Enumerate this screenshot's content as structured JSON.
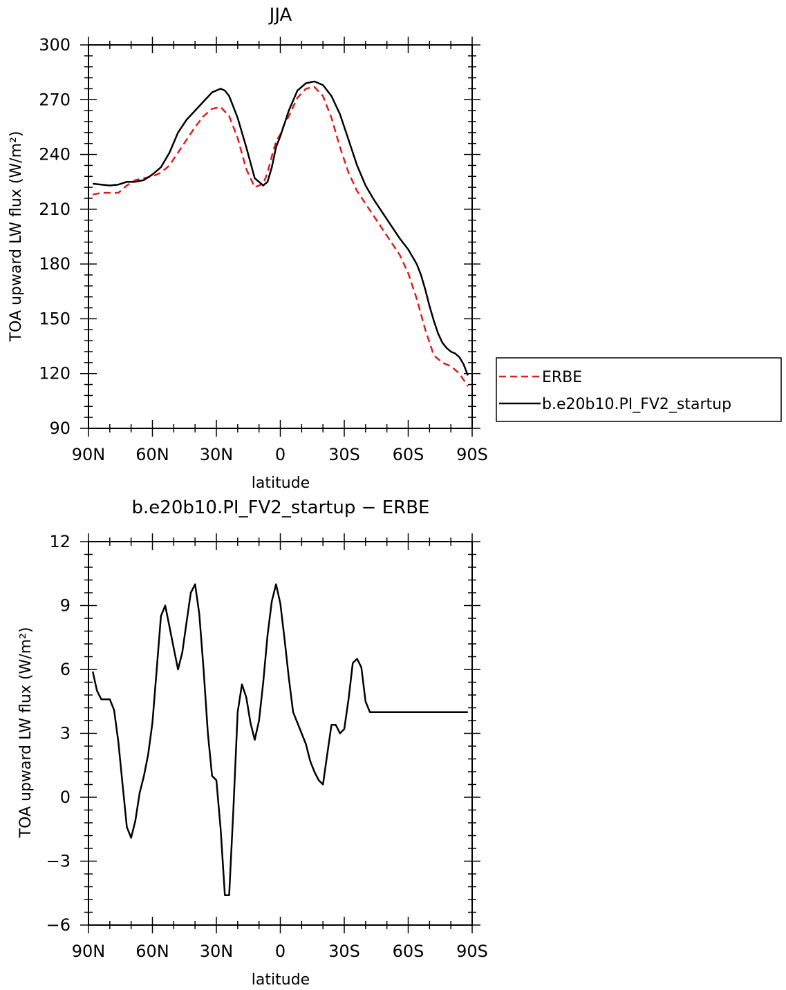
{
  "chart_data": [
    {
      "type": "line",
      "title": "JJA",
      "xlabel": "latitude",
      "ylabel": "TOA upward LW flux (W/m²)",
      "ylim": [
        90,
        300
      ],
      "xlim": [
        -90,
        90
      ],
      "yticks": [
        90,
        120,
        150,
        180,
        210,
        240,
        270,
        300
      ],
      "xticks": [
        {
          "value": -90,
          "label": "90N"
        },
        {
          "value": -60,
          "label": "60N"
        },
        {
          "value": -30,
          "label": "30N"
        },
        {
          "value": 0,
          "label": "0"
        },
        {
          "value": 30,
          "label": "30S"
        },
        {
          "value": 60,
          "label": "60S"
        },
        {
          "value": 90,
          "label": "90S"
        }
      ],
      "legend": {
        "placement": "right",
        "entries": [
          "ERBE",
          "b.e20b10.PI_FV2_startup"
        ]
      },
      "series": [
        {
          "name": "ERBE",
          "color": "#e41a1c",
          "dash": "dashed",
          "x": [
            -88,
            -84,
            -80,
            -76,
            -72,
            -68,
            -64,
            -60,
            -56,
            -52,
            -48,
            -44,
            -40,
            -36,
            -32,
            -28,
            -24,
            -20,
            -16,
            -12,
            -8,
            -6,
            -4,
            -2,
            0,
            2,
            4,
            8,
            12,
            16,
            20,
            24,
            28,
            32,
            36,
            40,
            44,
            48,
            52,
            56,
            60,
            64,
            68,
            72,
            76,
            80,
            84,
            88
          ],
          "values": [
            218,
            219,
            219,
            219,
            223,
            226,
            227,
            228,
            230,
            234,
            241,
            248,
            255,
            261,
            265,
            266,
            261,
            249,
            232,
            222,
            224,
            230,
            239,
            247,
            251,
            257,
            261,
            271,
            276,
            277,
            272,
            260,
            244,
            230,
            220,
            213,
            206,
            199,
            192,
            185,
            175,
            161,
            144,
            130,
            126,
            124,
            120,
            113
          ]
        },
        {
          "name": "b.e20b10.PI_FV2_startup",
          "color": "#000000",
          "dash": "solid",
          "x": [
            -88,
            -84,
            -80,
            -76,
            -72,
            -68,
            -64,
            -60,
            -56,
            -52,
            -48,
            -44,
            -40,
            -36,
            -32,
            -28,
            -26,
            -24,
            -22,
            -20,
            -16,
            -12,
            -8,
            -6,
            -4,
            -2,
            0,
            4,
            8,
            12,
            16,
            20,
            24,
            28,
            32,
            36,
            40,
            44,
            48,
            52,
            56,
            60,
            64,
            66,
            68,
            70,
            72,
            74,
            76,
            78,
            80,
            82,
            84,
            86,
            88
          ],
          "values": [
            224,
            223.5,
            223,
            223.5,
            225,
            225,
            226,
            229,
            233,
            241,
            252,
            259,
            264,
            269,
            274,
            276,
            275,
            272,
            266,
            260,
            244,
            227,
            223,
            225,
            233,
            244,
            250,
            264,
            275,
            279,
            280,
            278,
            272,
            262,
            248,
            234,
            223,
            215,
            208,
            201,
            194,
            188,
            180,
            174,
            166,
            157,
            149,
            142,
            137,
            134,
            132,
            131,
            129,
            125,
            119
          ]
        }
      ]
    },
    {
      "type": "line",
      "title": "b.e20b10.PI_FV2_startup − ERBE",
      "xlabel": "latitude",
      "ylabel": "TOA upward LW flux (W/m²)",
      "ylim": [
        -6,
        12
      ],
      "xlim": [
        -90,
        90
      ],
      "yticks": [
        -6,
        -3,
        0,
        3,
        6,
        9,
        12
      ],
      "ytick_labels": [
        "−6",
        "−3",
        "0",
        "3",
        "6",
        "9",
        "12"
      ],
      "xticks": [
        {
          "value": -90,
          "label": "90N"
        },
        {
          "value": -60,
          "label": "60N"
        },
        {
          "value": -30,
          "label": "30N"
        },
        {
          "value": 0,
          "label": "0"
        },
        {
          "value": 30,
          "label": "30S"
        },
        {
          "value": 60,
          "label": "60S"
        },
        {
          "value": 90,
          "label": "90S"
        }
      ],
      "series": [
        {
          "color": "#000000",
          "dash": "solid",
          "x": [
            -88,
            -86,
            -84,
            -82,
            -80,
            -78,
            -76,
            -74,
            -72,
            -70,
            -68,
            -66,
            -64,
            -62,
            -60,
            -58,
            -56,
            -54,
            -52,
            -50,
            -48,
            -46,
            -44,
            -42,
            -40,
            -38,
            -36,
            -34,
            -32,
            -30,
            -28,
            -26,
            -24,
            -22,
            -20,
            -18,
            -16,
            -14,
            -12,
            -10,
            -8,
            -6,
            -4,
            -2,
            0,
            2,
            4,
            6,
            8,
            10,
            12,
            14,
            16,
            18,
            20,
            22,
            24,
            26,
            28,
            30,
            32,
            34,
            36,
            38,
            40,
            42,
            44,
            46,
            48,
            50,
            52,
            54,
            56,
            58,
            60,
            62,
            64,
            66,
            68,
            70,
            72,
            74,
            76,
            78,
            80,
            82,
            84,
            86,
            88
          ],
          "values": [
            5.9,
            5.0,
            4.6,
            4.6,
            4.6,
            4.1,
            2.6,
            0.6,
            -1.4,
            -1.9,
            -1.1,
            0.2,
            1.0,
            2.0,
            3.5,
            6.0,
            8.5,
            9.0,
            8.0,
            7.0,
            6.0,
            6.8,
            8.2,
            9.6,
            10.0,
            8.6,
            6.0,
            3.0,
            1.0,
            0.8,
            -1.5,
            -4.6,
            -4.6,
            -0.5,
            4.0,
            5.3,
            4.7,
            3.5,
            2.7,
            3.6,
            5.4,
            7.6,
            9.2,
            10.0,
            9.1,
            7.4,
            5.6,
            4.0,
            3.5,
            3.0,
            2.5,
            1.7,
            1.2,
            0.8,
            0.6,
            2.0,
            3.4,
            3.4,
            3.0,
            3.2,
            4.6,
            6.3,
            6.5,
            6.1,
            4.5,
            4.0,
            4.0,
            4.0,
            4.0,
            4.0,
            4.0,
            4.0,
            4.0,
            4.0,
            4.0,
            4.0,
            4.0,
            4.0,
            4.0,
            4.0,
            4.0,
            4.0,
            4.0,
            4.0,
            4.0,
            4.0,
            4.0,
            4.0,
            4.0
          ]
        }
      ]
    }
  ]
}
